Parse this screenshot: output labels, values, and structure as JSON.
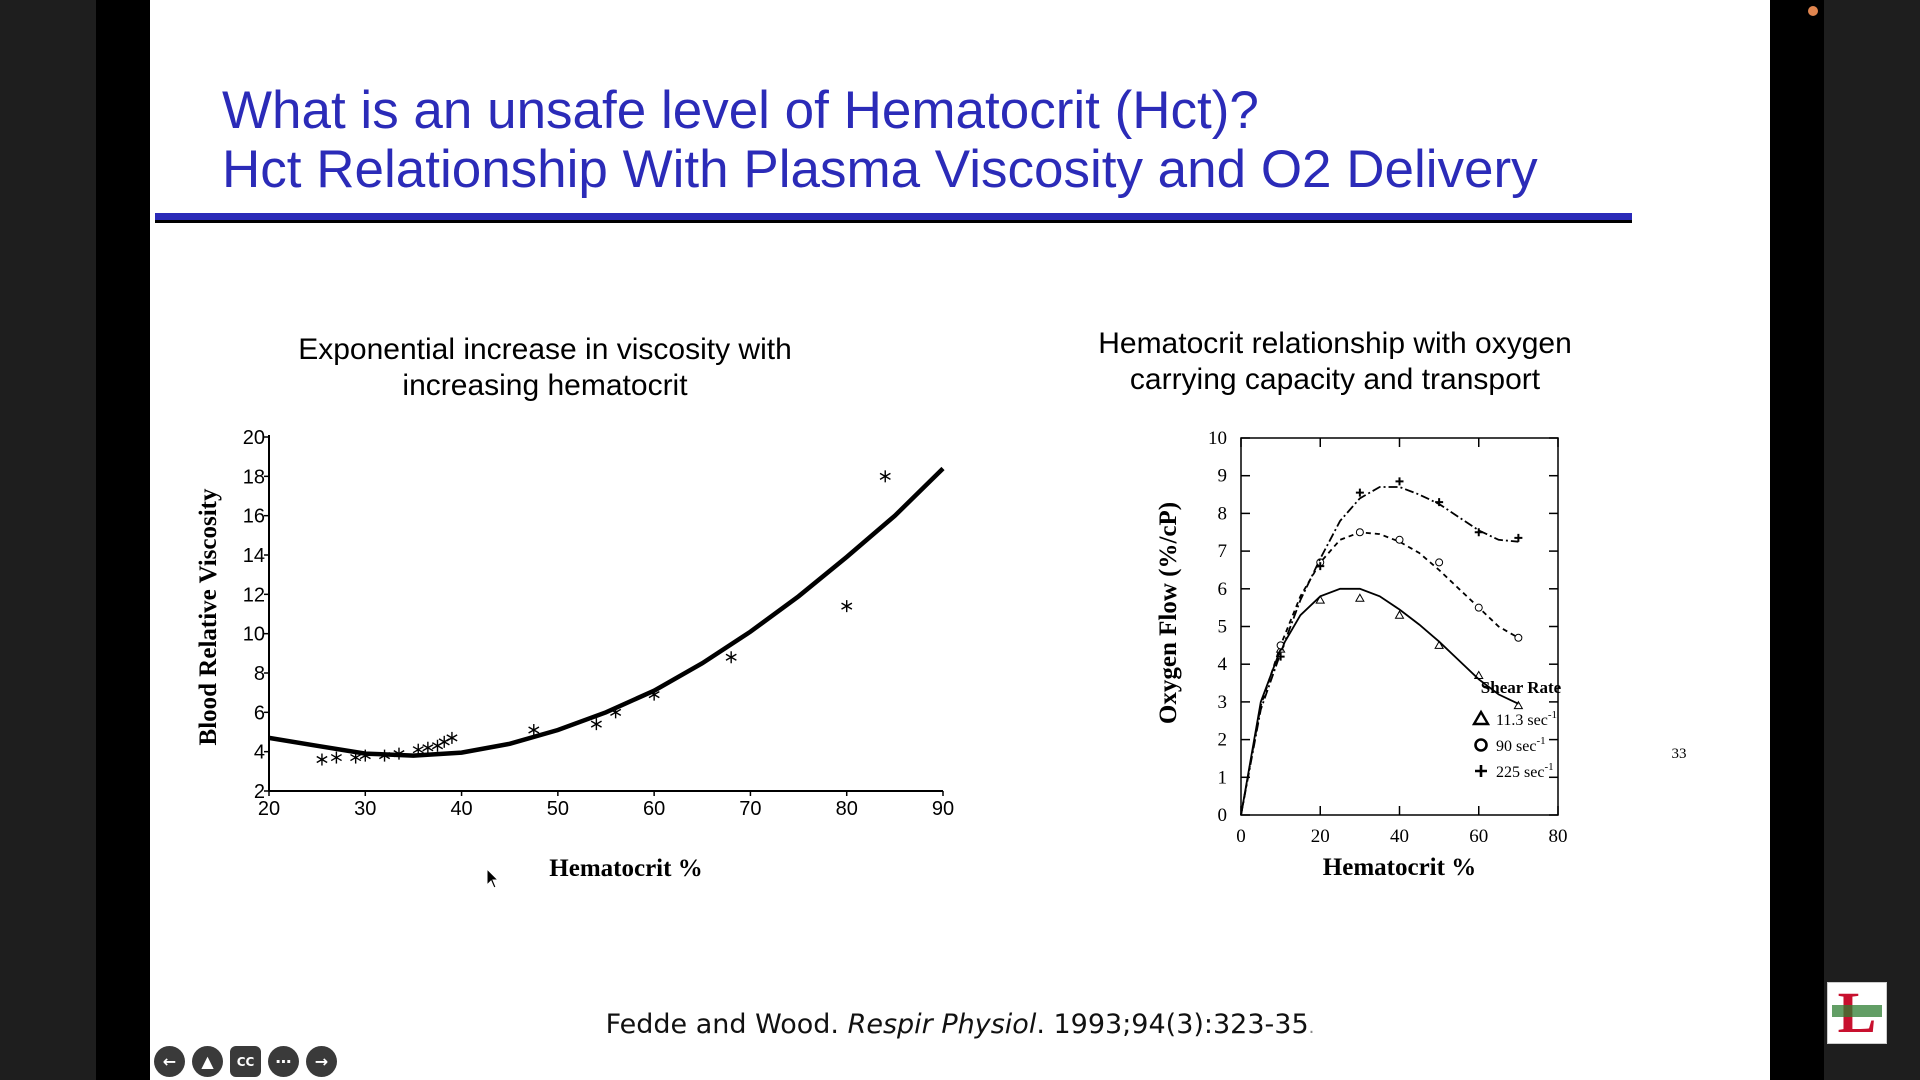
{
  "slide": {
    "title_line1": "What is an unsafe level of Hematocrit (Hct)?",
    "title_line2": "Hct Relationship With Plasma Viscosity and O2 Delivery",
    "citation_authors": "Fedde and Wood. ",
    "citation_journal": "Respir Physiol",
    "citation_rest": ". 1993;94(3):323-35",
    "citation_end": ".",
    "title_color": "#2b2bb8"
  },
  "controls": {
    "icons": [
      "arrow-left-icon",
      "pointer-icon",
      "captions-icon",
      "more-icon",
      "arrow-right-icon"
    ],
    "captions_label": "CC"
  },
  "logo": {
    "letter": "L"
  },
  "chart_data": [
    {
      "type": "scatter",
      "title": "Exponential increase in viscosity with increasing hematocrit",
      "xlabel": "Hematocrit %",
      "ylabel": "Blood Relative Viscosity",
      "xlim": [
        20,
        90
      ],
      "ylim": [
        2,
        20
      ],
      "xticks": [
        20,
        30,
        40,
        50,
        60,
        70,
        80,
        90
      ],
      "yticks": [
        2,
        4,
        6,
        8,
        10,
        12,
        14,
        16,
        18,
        20
      ],
      "points": [
        [
          25.5,
          3.6
        ],
        [
          27,
          3.7
        ],
        [
          29,
          3.7
        ],
        [
          30,
          3.8
        ],
        [
          32,
          3.8
        ],
        [
          33.5,
          3.9
        ],
        [
          35.5,
          4.1
        ],
        [
          36.5,
          4.2
        ],
        [
          37.5,
          4.3
        ],
        [
          38.2,
          4.5
        ],
        [
          39,
          4.7
        ],
        [
          47.5,
          5.1
        ],
        [
          54,
          5.4
        ],
        [
          56,
          6.0
        ],
        [
          60,
          6.9
        ],
        [
          68,
          8.8
        ],
        [
          80,
          11.4
        ],
        [
          84,
          18.0
        ]
      ],
      "fit_curve": [
        [
          20,
          4.7
        ],
        [
          25,
          4.3
        ],
        [
          30,
          3.9
        ],
        [
          35,
          3.8
        ],
        [
          40,
          3.95
        ],
        [
          45,
          4.4
        ],
        [
          50,
          5.1
        ],
        [
          55,
          6.0
        ],
        [
          60,
          7.1
        ],
        [
          65,
          8.5
        ],
        [
          70,
          10.1
        ],
        [
          75,
          11.9
        ],
        [
          80,
          13.9
        ],
        [
          85,
          16.0
        ],
        [
          90,
          18.4
        ]
      ]
    },
    {
      "type": "line",
      "title": "Hematocrit relationship with oxygen carrying capacity and transport",
      "xlabel": "Hematocrit %",
      "ylabel": "Oxygen Flow (%/cP)",
      "xlim": [
        0,
        80
      ],
      "ylim": [
        0,
        10
      ],
      "xticks": [
        0,
        20,
        40,
        60,
        80
      ],
      "yticks": [
        0,
        1,
        2,
        3,
        4,
        5,
        6,
        7,
        8,
        9,
        10
      ],
      "legend_title": "Shear Rate",
      "legend_position": "lower-left",
      "series": [
        {
          "name": "11.3 sec",
          "unit_sup": "-1",
          "marker": "triangle",
          "dash": "solid",
          "points": [
            [
              10,
              4.4
            ],
            [
              20,
              5.7
            ],
            [
              30,
              5.75
            ],
            [
              40,
              5.3
            ],
            [
              50,
              4.5
            ],
            [
              60,
              3.7
            ],
            [
              70,
              2.9
            ]
          ],
          "curve": [
            [
              0,
              0
            ],
            [
              5,
              3.0
            ],
            [
              10,
              4.4
            ],
            [
              15,
              5.3
            ],
            [
              20,
              5.8
            ],
            [
              25,
              6.0
            ],
            [
              30,
              6.0
            ],
            [
              35,
              5.8
            ],
            [
              40,
              5.45
            ],
            [
              45,
              5.05
            ],
            [
              50,
              4.6
            ],
            [
              55,
              4.1
            ],
            [
              60,
              3.6
            ],
            [
              65,
              3.2
            ],
            [
              70,
              2.95
            ]
          ]
        },
        {
          "name": "90 sec",
          "unit_sup": "-1",
          "marker": "circle",
          "dash": "dashed",
          "points": [
            [
              10,
              4.5
            ],
            [
              20,
              6.7
            ],
            [
              30,
              7.5
            ],
            [
              40,
              7.3
            ],
            [
              50,
              6.7
            ],
            [
              60,
              5.5
            ],
            [
              70,
              4.7
            ]
          ],
          "curve": [
            [
              0,
              0
            ],
            [
              5,
              2.9
            ],
            [
              10,
              4.5
            ],
            [
              15,
              5.8
            ],
            [
              20,
              6.7
            ],
            [
              25,
              7.3
            ],
            [
              30,
              7.5
            ],
            [
              35,
              7.45
            ],
            [
              40,
              7.25
            ],
            [
              45,
              6.95
            ],
            [
              50,
              6.5
            ],
            [
              55,
              6.0
            ],
            [
              60,
              5.5
            ],
            [
              65,
              5.0
            ],
            [
              70,
              4.7
            ]
          ]
        },
        {
          "name": "225 sec",
          "unit_sup": "-1",
          "marker": "plus",
          "dash": "dashdot",
          "points": [
            [
              10,
              4.2
            ],
            [
              20,
              6.6
            ],
            [
              30,
              8.55
            ],
            [
              40,
              8.85
            ],
            [
              50,
              8.3
            ],
            [
              60,
              7.5
            ],
            [
              70,
              7.35
            ]
          ],
          "curve": [
            [
              0,
              0
            ],
            [
              5,
              2.8
            ],
            [
              10,
              4.3
            ],
            [
              15,
              5.7
            ],
            [
              20,
              6.8
            ],
            [
              25,
              7.8
            ],
            [
              30,
              8.4
            ],
            [
              35,
              8.7
            ],
            [
              40,
              8.7
            ],
            [
              45,
              8.5
            ],
            [
              50,
              8.25
            ],
            [
              55,
              7.9
            ],
            [
              60,
              7.55
            ],
            [
              65,
              7.3
            ],
            [
              70,
              7.25
            ]
          ]
        }
      ],
      "annotation": "33"
    }
  ]
}
